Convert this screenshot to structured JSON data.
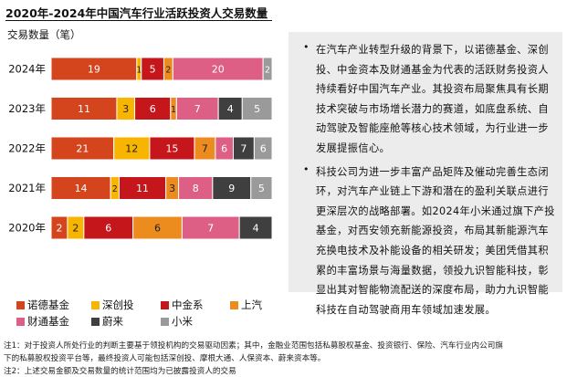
{
  "title": "2020年-2024年中国汽车行业活跃投资人交易数量",
  "units_label": "交易数量（笔）",
  "colors": {
    "诺德基金": "#d4451e",
    "深创投": "#f7b500",
    "中金系": "#c5161c",
    "上汽": "#ed8c1e",
    "财通基金": "#de5f86",
    "蔚来": "#3f3f3f",
    "小米": "#9a9a9a",
    "label_light": "#ffffff",
    "label_dark": "#222222"
  },
  "chart_data": {
    "type": "bar",
    "orientation": "horizontal",
    "stacked": true,
    "title": "2020年-2024年中国汽车行业活跃投资人交易数量",
    "ylabel": "交易数量（笔）",
    "categories": [
      "2024年",
      "2023年",
      "2022年",
      "2021年",
      "2020年"
    ],
    "series": [
      {
        "name": "诺德基金",
        "values": [
          19,
          11,
          21,
          14,
          2
        ]
      },
      {
        "name": "深创投",
        "values": [
          1,
          3,
          12,
          2,
          2
        ]
      },
      {
        "name": "中金系",
        "values": [
          5,
          6,
          15,
          11,
          6
        ]
      },
      {
        "name": "上汽",
        "values": [
          2,
          1,
          7,
          3,
          6
        ]
      },
      {
        "name": "财通基金",
        "values": [
          20,
          7,
          6,
          8,
          7
        ]
      },
      {
        "name": "蔚来",
        "values": [
          0,
          4,
          7,
          9,
          4
        ]
      },
      {
        "name": "小米",
        "values": [
          2,
          5,
          6,
          5,
          0
        ]
      }
    ],
    "legend_position": "bottom",
    "grid": false
  },
  "bullets": [
    "在汽车产业转型升级的背景下，以诺德基金、深创投、中金资本及财通基金为代表的活跃财务投资人持续看好中国汽车产业。其投资布局聚焦具有长期技术突破与市场增长潜力的赛道，如底盘系统、自动驾驶及智能座舱等核心技术领域，为行业进一步发展提振信心。",
    "科技公司为进一步丰富产品矩阵及催动完善生态闭环，对汽车产业链上下游和潜在的盈利关联点进行更深层次的战略部署。如2024年小米通过旗下产投基金，对西安领充新能源投资，布局其新能源汽车充换电技术及补能设备的相关研发；美团凭借其积累的丰富场景与海量数据，领投九识智能科技，彰显出其对智能物流配送的深度布局，助力九识智能科技在自动驾驶商用车领域加速发展。"
  ],
  "notes": [
    "注1：对于投资人所处行业的判断主要基于领投机构的交易驱动因素；其中，金融业范围包括私募股权基金、投资银行、保险、汽车行业内公司旗",
    "下的私募股权投资平台等，最终投资人可能包括深创投、摩根大通、人保资本、蔚来资本等。",
    "注2：上述交易金额及交易数量的统计范围均为已披露投资人的交易"
  ]
}
